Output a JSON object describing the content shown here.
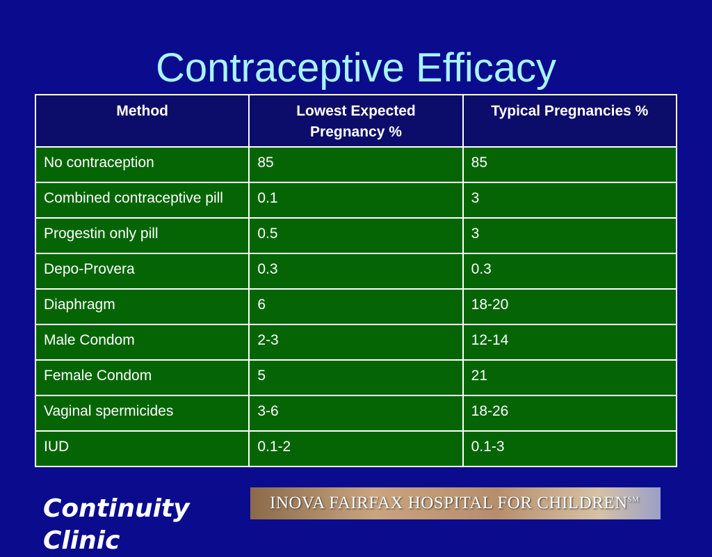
{
  "title": "Contraceptive Efficacy",
  "table": {
    "header": [
      "Method",
      "Lowest Expected Pregnancy %",
      "Typical Pregnancies %"
    ],
    "rows": [
      [
        "No contraception",
        "85",
        "85"
      ],
      [
        "Combined contraceptive pill",
        "0.1",
        "3"
      ],
      [
        "Progestin only pill",
        "0.5",
        "3"
      ],
      [
        "Depo-Provera",
        "0.3",
        "0.3"
      ],
      [
        "Diaphragm",
        "6",
        "18-20"
      ],
      [
        "Male Condom",
        "2-3",
        "12-14"
      ],
      [
        "Female Condom",
        "5",
        "21"
      ],
      [
        "Vaginal spermicides",
        "3-6",
        "18-26"
      ],
      [
        "IUD",
        "0.1-2",
        "0.1-3"
      ]
    ]
  },
  "footer": {
    "clinic": "Continuity Clinic",
    "logo": "INOVA FAIRFAX HOSPITAL FOR CHILDREN",
    "logo_mark": "SM"
  }
}
